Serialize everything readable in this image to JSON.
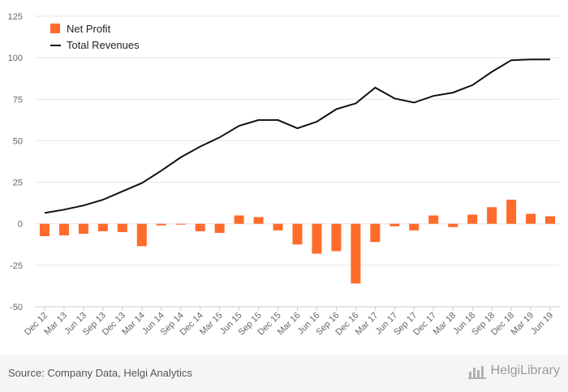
{
  "chart_data": {
    "type": "bar+line",
    "categories": [
      "Dec 12",
      "Mar 13",
      "Jun 13",
      "Sep 13",
      "Dec 13",
      "Mar 14",
      "Jun 14",
      "Sep 14",
      "Dec 14",
      "Mar 15",
      "Jun 15",
      "Sep 15",
      "Dec 15",
      "Mar 16",
      "Jun 16",
      "Sep 16",
      "Dec 16",
      "Mar 17",
      "Jun 17",
      "Sep 17",
      "Dec 17",
      "Mar 18",
      "Jun 18",
      "Sep 18",
      "Dec 18",
      "Mar 19",
      "Jun 19"
    ],
    "series": [
      {
        "name": "Net Profit",
        "type": "bar",
        "color": "#ff6b2b",
        "values": [
          -7.5,
          -7,
          -6,
          -4.5,
          -5,
          -13.5,
          -1,
          -0.5,
          -4.5,
          -5.5,
          5,
          4,
          -4,
          -12.5,
          -18,
          -16.5,
          -36,
          -11,
          -1.5,
          -4,
          5,
          -2,
          5.5,
          10,
          14.5,
          6,
          4.5
        ]
      },
      {
        "name": "Total Revenues",
        "type": "line",
        "color": "#111111",
        "values": [
          6.5,
          8.5,
          11,
          14.5,
          19.5,
          24.5,
          32,
          40,
          46.5,
          52,
          59,
          62.5,
          62.5,
          57.5,
          61.5,
          69,
          72.5,
          82,
          75.5,
          73,
          77,
          79,
          83.5,
          91.5,
          98.5,
          99,
          99
        ]
      }
    ],
    "yticks": [
      125,
      100,
      75,
      50,
      25,
      0,
      -25,
      -50
    ],
    "ylim": [
      -50,
      125
    ],
    "grid": true,
    "legend": "top-left"
  },
  "footer": {
    "source": "Source: Company Data, Helgi Analytics",
    "brand": "HelgiLibrary"
  }
}
